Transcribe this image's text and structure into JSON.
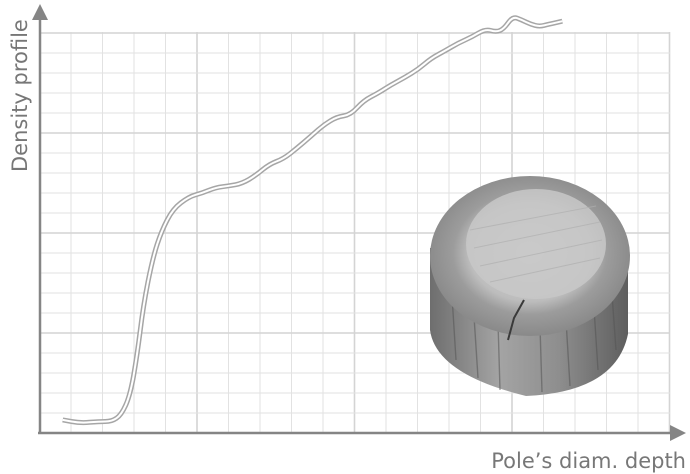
{
  "chart_data": {
    "type": "line",
    "title": "",
    "xlabel": "Pole’s diam. depth",
    "ylabel": "Density profile",
    "xlim": [
      0,
      100
    ],
    "ylim": [
      0,
      100
    ],
    "grid": true,
    "tick_labels": false,
    "series": [
      {
        "values_x": [
          3.6,
          6.4,
          9.3,
          11.4,
          12.9,
          14.3,
          15.4,
          16.4,
          17.9,
          19.3,
          21.1,
          23.6,
          25.7,
          27.9,
          30.0,
          32.1,
          34.3,
          36.4,
          38.6,
          40.7,
          42.9,
          45.0,
          47.1,
          49.3,
          51.4,
          53.6,
          55.7,
          57.9,
          60.0,
          62.1,
          64.3,
          66.4,
          68.6,
          70.7,
          72.4,
          73.6,
          75.0,
          76.4,
          77.9,
          79.3,
          80.7,
          82.9
        ],
        "values_y": [
          4.2,
          3.2,
          3.7,
          3.7,
          5.8,
          12.1,
          24.8,
          41.0,
          56.4,
          65.1,
          72.1,
          76.0,
          77.2,
          79.0,
          79.5,
          80.3,
          83.0,
          86.5,
          88.2,
          91.5,
          95.3,
          99.1,
          101.7,
          102.4,
          107.0,
          109.3,
          112.0,
          114.4,
          117.0,
          120.6,
          123.0,
          125.5,
          127.5,
          130.0,
          129.0,
          130.0,
          134.0,
          133.0,
          131.5,
          130.8,
          131.5,
          132.5
        ]
      }
    ]
  },
  "photo": {
    "subject": "wood-pole-cross-section",
    "colors": {
      "heartwood": "#c4c4c4",
      "sapwood": "#9a9a9a",
      "bark": "#8a8a8a",
      "crack": "#3a3a3a"
    }
  },
  "style": {
    "axis_color": "#858585",
    "grid_color": "#e2e2e2",
    "line_color": "#a6a6a6"
  }
}
